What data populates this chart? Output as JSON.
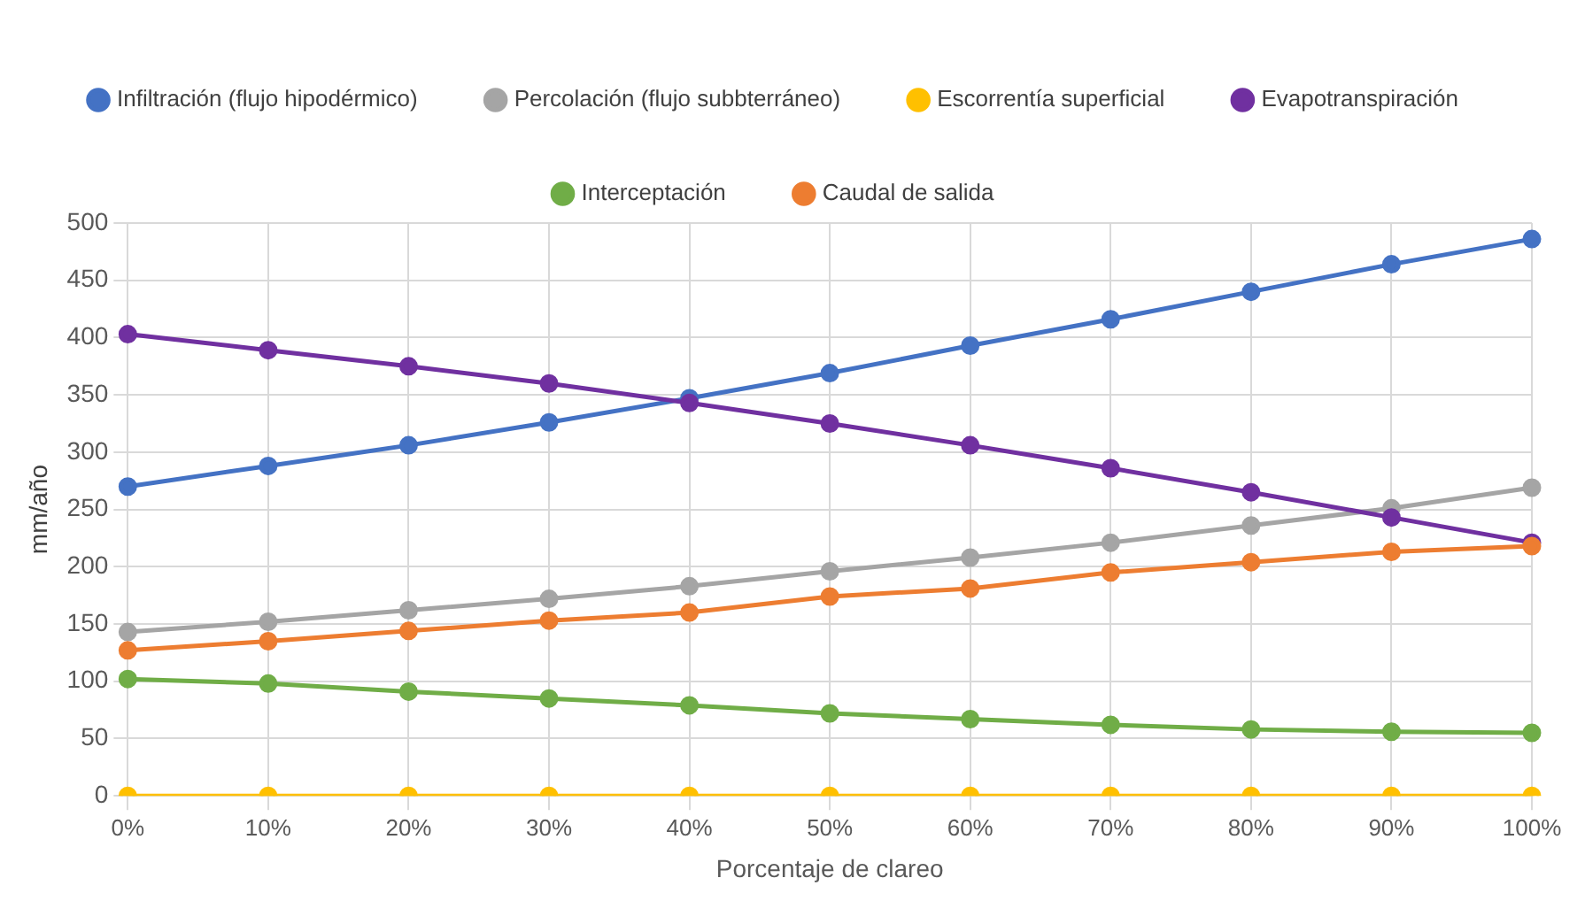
{
  "chart_data": {
    "type": "line",
    "xlabel": "Porcentaje de clareo",
    "ylabel": "mm/año",
    "categories": [
      "0%",
      "10%",
      "20%",
      "30%",
      "40%",
      "50%",
      "60%",
      "70%",
      "80%",
      "90%",
      "100%"
    ],
    "series": [
      {
        "name": "Infiltración (flujo hipodérmico)",
        "color": "#4472c4",
        "values": [
          270,
          288,
          306,
          326,
          347,
          369,
          393,
          416,
          440,
          464,
          486
        ]
      },
      {
        "name": "Percolación (flujo subbterráneo)",
        "color": "#a5a5a5",
        "values": [
          143,
          152,
          162,
          172,
          183,
          196,
          208,
          221,
          236,
          251,
          269
        ]
      },
      {
        "name": "Escorrentía superficial",
        "color": "#ffc000",
        "values": [
          0,
          0,
          0,
          0,
          0,
          0,
          0,
          0,
          0,
          0,
          0
        ]
      },
      {
        "name": "Evapotranspiración",
        "color": "#7030a0",
        "values": [
          403,
          389,
          375,
          360,
          343,
          325,
          306,
          286,
          265,
          243,
          221
        ]
      },
      {
        "name": "Interceptación",
        "color": "#70ad47",
        "values": [
          102,
          98,
          91,
          85,
          79,
          72,
          67,
          62,
          58,
          56,
          55
        ]
      },
      {
        "name": "Caudal de salida",
        "color": "#ed7d31",
        "values": [
          127,
          135,
          144,
          153,
          160,
          174,
          181,
          195,
          204,
          213,
          218
        ]
      }
    ],
    "ylim": [
      0,
      500
    ],
    "yticks": [
      0,
      50,
      100,
      150,
      200,
      250,
      300,
      350,
      400,
      450,
      500
    ],
    "grid": true,
    "legend": "top",
    "marker": "circle",
    "line_style": "solid"
  }
}
